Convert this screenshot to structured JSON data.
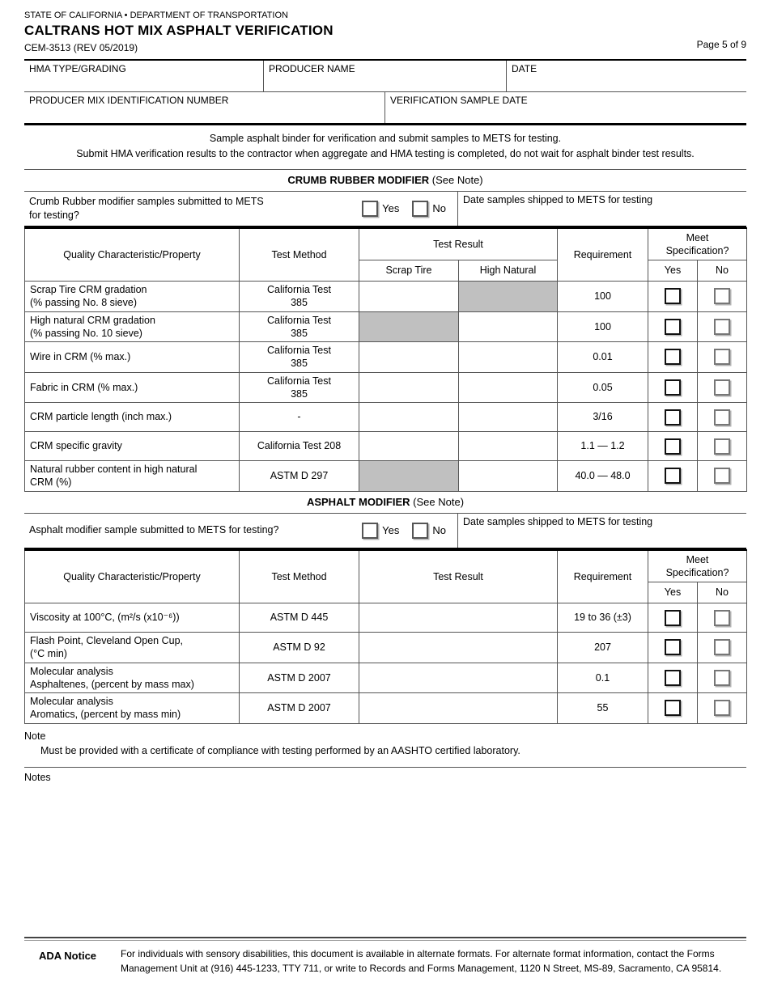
{
  "header": {
    "agency": "STATE OF CALIFORNIA • DEPARTMENT OF TRANSPORTATION",
    "title": "CALTRANS HOT MIX ASPHALT VERIFICATION",
    "form_number": "CEM-3513 (REV 05/2019)",
    "page": "Page 5 of 9"
  },
  "info": {
    "hma_type_label": "HMA TYPE/GRADING",
    "producer_name_label": "PRODUCER NAME",
    "date_label": "DATE",
    "producer_mix_label": "PRODUCER MIX IDENTIFICATION NUMBER",
    "verification_sample_date_label": "VERIFICATION SAMPLE DATE",
    "hma_type_value": "",
    "producer_name_value": "",
    "date_value": "",
    "producer_mix_value": "",
    "verification_sample_date_value": ""
  },
  "instructions": {
    "line1": "Sample asphalt binder for verification and submit samples to METS for testing.",
    "line2": "Submit HMA verification results to the contractor when aggregate and HMA testing is completed, do not wait for asphalt binder test results."
  },
  "crm": {
    "title": "CRUMB RUBBER MODIFIER",
    "title_note": "(See Note)",
    "question": "Crumb Rubber modifier samples submitted to METS\nfor testing?",
    "yes": "Yes",
    "no": "No",
    "date_shipped_label": "Date samples shipped to METS for testing",
    "columns": {
      "property": "Quality Characteristic/Property",
      "test_method": "Test Method",
      "test_result": "Test Result",
      "scrap_tire": "Scrap Tire",
      "high_natural": "High Natural",
      "requirement": "Requirement",
      "meet_spec": "Meet\nSpecification?",
      "yes": "Yes",
      "no": "No"
    },
    "rows": [
      {
        "property": "Scrap Tire CRM gradation\n(% passing No. 8 sieve)",
        "method": "California Test\n385",
        "scrap_shaded": false,
        "high_shaded": true,
        "requirement": "100"
      },
      {
        "property": "High natural CRM gradation\n(% passing No. 10 sieve)",
        "method": "California Test\n385",
        "scrap_shaded": true,
        "high_shaded": false,
        "requirement": "100"
      },
      {
        "property": "Wire in CRM (% max.)",
        "method": "California Test\n385",
        "scrap_shaded": false,
        "high_shaded": false,
        "requirement": "0.01"
      },
      {
        "property": "Fabric in CRM (% max.)",
        "method": "California Test\n385",
        "scrap_shaded": false,
        "high_shaded": false,
        "requirement": "0.05"
      },
      {
        "property": "CRM particle length (inch max.)",
        "method": "-",
        "scrap_shaded": false,
        "high_shaded": false,
        "requirement": "3/16"
      },
      {
        "property": "CRM specific gravity",
        "method": "California Test 208",
        "scrap_shaded": false,
        "high_shaded": false,
        "requirement": "1.1 — 1.2"
      },
      {
        "property": "Natural rubber content in high natural\nCRM (%)",
        "method": "ASTM D 297",
        "scrap_shaded": true,
        "high_shaded": false,
        "requirement": "40.0 — 48.0"
      }
    ]
  },
  "asphalt": {
    "title": "ASPHALT MODIFIER",
    "title_note": "(See Note)",
    "question": "Asphalt modifier sample submitted to METS for testing?",
    "yes": "Yes",
    "no": "No",
    "date_shipped_label": "Date samples shipped to METS for testing",
    "columns": {
      "property": "Quality Characteristic/Property",
      "test_method": "Test Method",
      "test_result": "Test Result",
      "requirement": "Requirement",
      "meet_spec": "Meet\nSpecification?",
      "yes": "Yes",
      "no": "No"
    },
    "rows": [
      {
        "property": "Viscosity at 100°C, (m²/s (x10⁻⁶))",
        "method": "ASTM D 445",
        "requirement": "19 to 36 (±3)"
      },
      {
        "property": "Flash Point, Cleveland Open Cup,\n(°C min)",
        "method": "ASTM D 92",
        "requirement": "207"
      },
      {
        "property": "Molecular analysis\nAsphaltenes, (percent by mass max)",
        "method": "ASTM D 2007",
        "requirement": "0.1"
      },
      {
        "property": "Molecular analysis\nAromatics, (percent by mass min)",
        "method": "ASTM D 2007",
        "requirement": "55"
      }
    ]
  },
  "note": {
    "label": "Note",
    "text": "Must be provided with a certificate of compliance with testing performed by an AASHTO certified laboratory."
  },
  "notes_label": "Notes",
  "footer": {
    "ada_label": "ADA Notice",
    "text": "For individuals with sensory disabilities, this document is available in alternate formats. For alternate format information, contact the Forms Management Unit at (916) 445-1233, TTY 711, or write to Records and Forms Management, 1120 N Street, MS-89, Sacramento, CA 95814."
  },
  "colors": {
    "shaded_cell": "#c0c0c0"
  }
}
